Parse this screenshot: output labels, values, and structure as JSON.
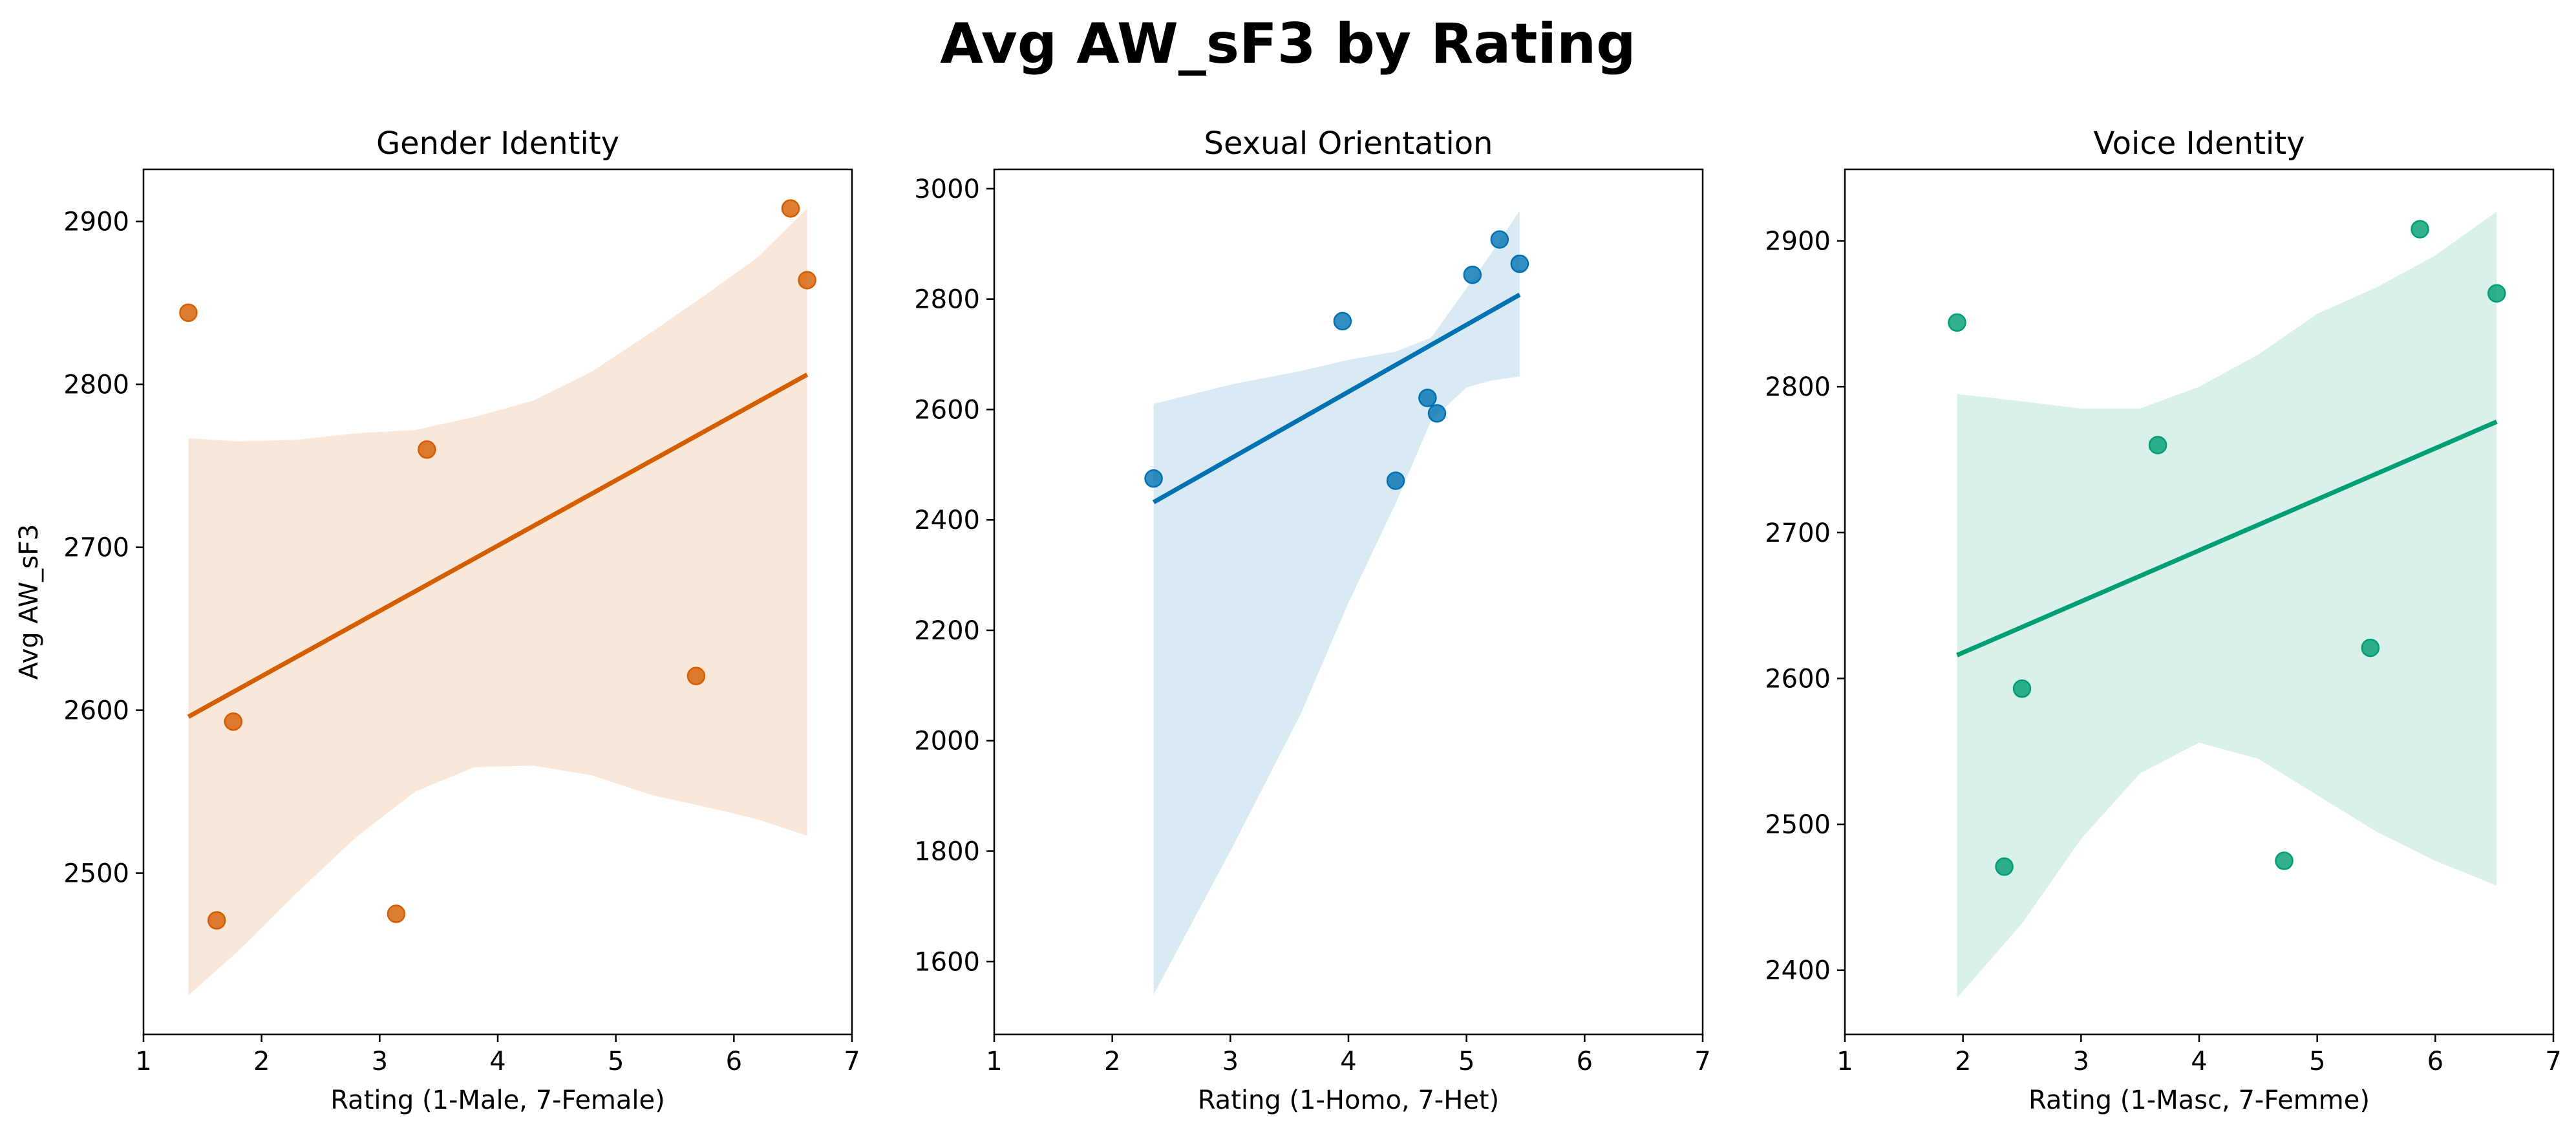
{
  "figure": {
    "title": "Avg AW_sF3 by Rating"
  },
  "chart_data": [
    {
      "type": "scatter",
      "title": "Gender Identity",
      "xlabel": "Rating (1-Male, 7-Female)",
      "ylabel": "Avg AW_sF3",
      "xlim": [
        1,
        7
      ],
      "ylim": [
        2401,
        2932
      ],
      "xticks": [
        1,
        2,
        3,
        4,
        5,
        6,
        7
      ],
      "yticks": [
        2500,
        2600,
        2700,
        2800,
        2900
      ],
      "color": "#d55e00",
      "points": [
        {
          "x": 1.38,
          "y": 2844
        },
        {
          "x": 1.62,
          "y": 2471
        },
        {
          "x": 1.76,
          "y": 2593
        },
        {
          "x": 3.14,
          "y": 2475
        },
        {
          "x": 3.4,
          "y": 2760
        },
        {
          "x": 5.68,
          "y": 2621
        },
        {
          "x": 6.48,
          "y": 2908
        },
        {
          "x": 6.62,
          "y": 2864
        }
      ],
      "fit_line": [
        {
          "x": 1.38,
          "y": 2596
        },
        {
          "x": 6.62,
          "y": 2806
        }
      ],
      "ci_band": [
        {
          "x": 1.38,
          "lo": 2425,
          "hi": 2767
        },
        {
          "x": 1.8,
          "lo": 2452,
          "hi": 2765
        },
        {
          "x": 2.3,
          "lo": 2488,
          "hi": 2766
        },
        {
          "x": 2.8,
          "lo": 2522,
          "hi": 2770
        },
        {
          "x": 3.3,
          "lo": 2550,
          "hi": 2772
        },
        {
          "x": 3.8,
          "lo": 2565,
          "hi": 2780
        },
        {
          "x": 4.3,
          "lo": 2566,
          "hi": 2790
        },
        {
          "x": 4.8,
          "lo": 2560,
          "hi": 2808
        },
        {
          "x": 5.3,
          "lo": 2548,
          "hi": 2832
        },
        {
          "x": 5.8,
          "lo": 2540,
          "hi": 2857
        },
        {
          "x": 6.2,
          "lo": 2533,
          "hi": 2878
        },
        {
          "x": 6.62,
          "lo": 2523,
          "hi": 2908
        }
      ]
    },
    {
      "type": "scatter",
      "title": "Sexual Orientation",
      "xlabel": "Rating (1-Homo, 7-Het)",
      "ylabel": "",
      "xlim": [
        1,
        7
      ],
      "ylim": [
        1468,
        3035
      ],
      "xticks": [
        1,
        2,
        3,
        4,
        5,
        6,
        7
      ],
      "yticks": [
        1600,
        1800,
        2000,
        2200,
        2400,
        2600,
        2800,
        3000
      ],
      "color": "#0072b2",
      "points": [
        {
          "x": 2.35,
          "y": 2475
        },
        {
          "x": 3.95,
          "y": 2760
        },
        {
          "x": 4.4,
          "y": 2471
        },
        {
          "x": 4.67,
          "y": 2621
        },
        {
          "x": 4.75,
          "y": 2593
        },
        {
          "x": 5.05,
          "y": 2844
        },
        {
          "x": 5.28,
          "y": 2908
        },
        {
          "x": 5.45,
          "y": 2864
        }
      ],
      "fit_line": [
        {
          "x": 2.35,
          "y": 2432
        },
        {
          "x": 5.45,
          "y": 2808
        }
      ],
      "ci_band": [
        {
          "x": 2.35,
          "lo": 1540,
          "hi": 2610
        },
        {
          "x": 3.0,
          "lo": 1800,
          "hi": 2645
        },
        {
          "x": 3.6,
          "lo": 2050,
          "hi": 2670
        },
        {
          "x": 4.0,
          "lo": 2250,
          "hi": 2690
        },
        {
          "x": 4.4,
          "lo": 2430,
          "hi": 2705
        },
        {
          "x": 4.7,
          "lo": 2580,
          "hi": 2730
        },
        {
          "x": 5.0,
          "lo": 2640,
          "hi": 2820
        },
        {
          "x": 5.2,
          "lo": 2652,
          "hi": 2880
        },
        {
          "x": 5.45,
          "lo": 2660,
          "hi": 2960
        }
      ]
    },
    {
      "type": "scatter",
      "title": "Voice Identity",
      "xlabel": "Rating (1-Masc, 7-Femme)",
      "ylabel": "",
      "xlim": [
        1,
        7
      ],
      "ylim": [
        2356,
        2949
      ],
      "xticks": [
        1,
        2,
        3,
        4,
        5,
        6,
        7
      ],
      "yticks": [
        2400,
        2500,
        2600,
        2700,
        2800,
        2900
      ],
      "color": "#009e73",
      "points": [
        {
          "x": 1.95,
          "y": 2844
        },
        {
          "x": 2.35,
          "y": 2471
        },
        {
          "x": 2.5,
          "y": 2593
        },
        {
          "x": 3.65,
          "y": 2760
        },
        {
          "x": 4.72,
          "y": 2475
        },
        {
          "x": 5.45,
          "y": 2621
        },
        {
          "x": 5.87,
          "y": 2908
        },
        {
          "x": 6.52,
          "y": 2864
        }
      ],
      "fit_line": [
        {
          "x": 1.95,
          "y": 2616
        },
        {
          "x": 6.52,
          "y": 2776
        }
      ],
      "ci_band": [
        {
          "x": 1.95,
          "lo": 2381,
          "hi": 2795
        },
        {
          "x": 2.5,
          "lo": 2432,
          "hi": 2790
        },
        {
          "x": 3.0,
          "lo": 2490,
          "hi": 2785
        },
        {
          "x": 3.5,
          "lo": 2535,
          "hi": 2785
        },
        {
          "x": 4.0,
          "lo": 2556,
          "hi": 2800
        },
        {
          "x": 4.5,
          "lo": 2545,
          "hi": 2822
        },
        {
          "x": 5.0,
          "lo": 2520,
          "hi": 2850
        },
        {
          "x": 5.5,
          "lo": 2495,
          "hi": 2868
        },
        {
          "x": 6.0,
          "lo": 2475,
          "hi": 2890
        },
        {
          "x": 6.52,
          "lo": 2458,
          "hi": 2920
        }
      ]
    }
  ]
}
